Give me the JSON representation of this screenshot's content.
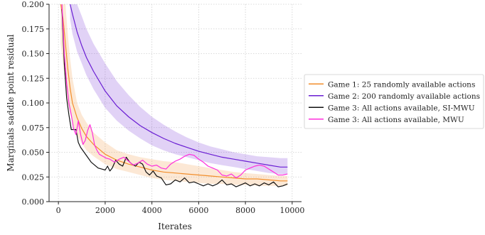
{
  "chart_data": {
    "type": "line",
    "title": "",
    "xlabel": "Iterates",
    "ylabel": "Marginals saddle point residual",
    "xlim": [
      -400,
      10400
    ],
    "ylim": [
      0,
      0.2
    ],
    "x_ticks": [
      0,
      2000,
      4000,
      6000,
      8000,
      10000
    ],
    "y_ticks": [
      0.0,
      0.025,
      0.05,
      0.075,
      0.1,
      0.125,
      0.15,
      0.175,
      0.2
    ],
    "grid": true,
    "legend_position": "right",
    "series": [
      {
        "name": "Game 1: 25 randomly available actions",
        "color": "#f28e2b",
        "x": [
          100,
          200,
          300,
          400,
          500,
          600,
          800,
          1000,
          1200,
          1500,
          2000,
          2500,
          3000,
          3500,
          4000,
          4500,
          5000,
          5500,
          6000,
          6500,
          7000,
          7500,
          8000,
          8500,
          9000,
          9500,
          9800
        ],
        "y": [
          0.2,
          0.185,
          0.16,
          0.135,
          0.115,
          0.1,
          0.085,
          0.074,
          0.066,
          0.058,
          0.048,
          0.042,
          0.038,
          0.035,
          0.032,
          0.03,
          0.029,
          0.028,
          0.027,
          0.026,
          0.025,
          0.024,
          0.023,
          0.023,
          0.022,
          0.021,
          0.021
        ],
        "band_upper": [
          0.2,
          0.2,
          0.2,
          0.17,
          0.145,
          0.125,
          0.1,
          0.088,
          0.08,
          0.07,
          0.06,
          0.052,
          0.048,
          0.045,
          0.043,
          0.041,
          0.04,
          0.038,
          0.036,
          0.034,
          0.032,
          0.03,
          0.029,
          0.028,
          0.027,
          0.026,
          0.026
        ],
        "band_lower": [
          0.16,
          0.14,
          0.12,
          0.1,
          0.09,
          0.08,
          0.068,
          0.059,
          0.052,
          0.046,
          0.038,
          0.033,
          0.03,
          0.027,
          0.024,
          0.022,
          0.021,
          0.02,
          0.019,
          0.018,
          0.018,
          0.017,
          0.017,
          0.016,
          0.016,
          0.016,
          0.016
        ]
      },
      {
        "name": "Game 2: 200 randomly available actions",
        "color": "#6a1ed3",
        "x": [
          500,
          600,
          800,
          1000,
          1200,
          1500,
          2000,
          2500,
          3000,
          3500,
          4000,
          4500,
          5000,
          5500,
          6000,
          6500,
          7000,
          7500,
          8000,
          8500,
          9000,
          9500,
          9800
        ],
        "y": [
          0.2,
          0.19,
          0.172,
          0.158,
          0.146,
          0.132,
          0.112,
          0.097,
          0.086,
          0.077,
          0.07,
          0.064,
          0.059,
          0.055,
          0.051,
          0.048,
          0.045,
          0.043,
          0.041,
          0.039,
          0.037,
          0.035,
          0.035
        ],
        "band_upper": [
          0.2,
          0.2,
          0.2,
          0.188,
          0.175,
          0.16,
          0.14,
          0.122,
          0.108,
          0.096,
          0.086,
          0.078,
          0.071,
          0.065,
          0.06,
          0.056,
          0.053,
          0.05,
          0.048,
          0.046,
          0.045,
          0.044,
          0.044
        ],
        "band_lower": [
          0.185,
          0.17,
          0.152,
          0.14,
          0.128,
          0.114,
          0.095,
          0.082,
          0.072,
          0.064,
          0.057,
          0.052,
          0.048,
          0.045,
          0.042,
          0.039,
          0.037,
          0.035,
          0.033,
          0.031,
          0.029,
          0.028,
          0.028
        ]
      },
      {
        "name": "Game 3: All actions available, SI-MWU",
        "color": "#111111",
        "x": [
          150,
          250,
          350,
          450,
          550,
          650,
          750,
          850,
          950,
          1100,
          1250,
          1400,
          1550,
          1700,
          1850,
          2000,
          2100,
          2200,
          2300,
          2450,
          2600,
          2750,
          2900,
          3050,
          3150,
          3300,
          3450,
          3600,
          3750,
          3900,
          4050,
          4200,
          4400,
          4600,
          4800,
          5000,
          5200,
          5400,
          5600,
          5800,
          6000,
          6200,
          6400,
          6600,
          6800,
          7000,
          7200,
          7400,
          7600,
          7800,
          8000,
          8200,
          8400,
          8600,
          8800,
          9000,
          9200,
          9400,
          9600,
          9800
        ],
        "y": [
          0.195,
          0.14,
          0.105,
          0.088,
          0.073,
          0.073,
          0.073,
          0.06,
          0.055,
          0.05,
          0.045,
          0.04,
          0.037,
          0.034,
          0.033,
          0.032,
          0.036,
          0.031,
          0.034,
          0.042,
          0.038,
          0.036,
          0.045,
          0.04,
          0.038,
          0.036,
          0.04,
          0.038,
          0.03,
          0.027,
          0.031,
          0.026,
          0.024,
          0.017,
          0.018,
          0.022,
          0.02,
          0.024,
          0.019,
          0.02,
          0.018,
          0.016,
          0.018,
          0.016,
          0.018,
          0.022,
          0.017,
          0.018,
          0.015,
          0.017,
          0.019,
          0.016,
          0.018,
          0.016,
          0.019,
          0.017,
          0.02,
          0.015,
          0.016,
          0.018
        ]
      },
      {
        "name": "Game 3: All actions available, MWU",
        "color": "#ff2ddc",
        "x": [
          150,
          250,
          350,
          450,
          550,
          650,
          750,
          850,
          950,
          1050,
          1150,
          1250,
          1350,
          1450,
          1550,
          1650,
          1750,
          1900,
          2050,
          2200,
          2400,
          2600,
          2800,
          3000,
          3200,
          3400,
          3600,
          3800,
          4000,
          4200,
          4400,
          4600,
          4800,
          5000,
          5200,
          5400,
          5600,
          5800,
          6000,
          6200,
          6400,
          6600,
          6800,
          7000,
          7200,
          7400,
          7600,
          7800,
          8000,
          8200,
          8400,
          8600,
          8800,
          9000,
          9200,
          9400,
          9600,
          9800
        ],
        "y": [
          0.2,
          0.15,
          0.12,
          0.1,
          0.088,
          0.074,
          0.068,
          0.082,
          0.068,
          0.058,
          0.062,
          0.072,
          0.078,
          0.07,
          0.057,
          0.052,
          0.048,
          0.046,
          0.044,
          0.043,
          0.04,
          0.043,
          0.045,
          0.041,
          0.037,
          0.039,
          0.042,
          0.038,
          0.036,
          0.037,
          0.034,
          0.033,
          0.038,
          0.041,
          0.043,
          0.046,
          0.048,
          0.047,
          0.043,
          0.04,
          0.036,
          0.034,
          0.032,
          0.027,
          0.026,
          0.028,
          0.024,
          0.027,
          0.032,
          0.034,
          0.036,
          0.037,
          0.036,
          0.033,
          0.03,
          0.027,
          0.027,
          0.028
        ]
      }
    ]
  }
}
